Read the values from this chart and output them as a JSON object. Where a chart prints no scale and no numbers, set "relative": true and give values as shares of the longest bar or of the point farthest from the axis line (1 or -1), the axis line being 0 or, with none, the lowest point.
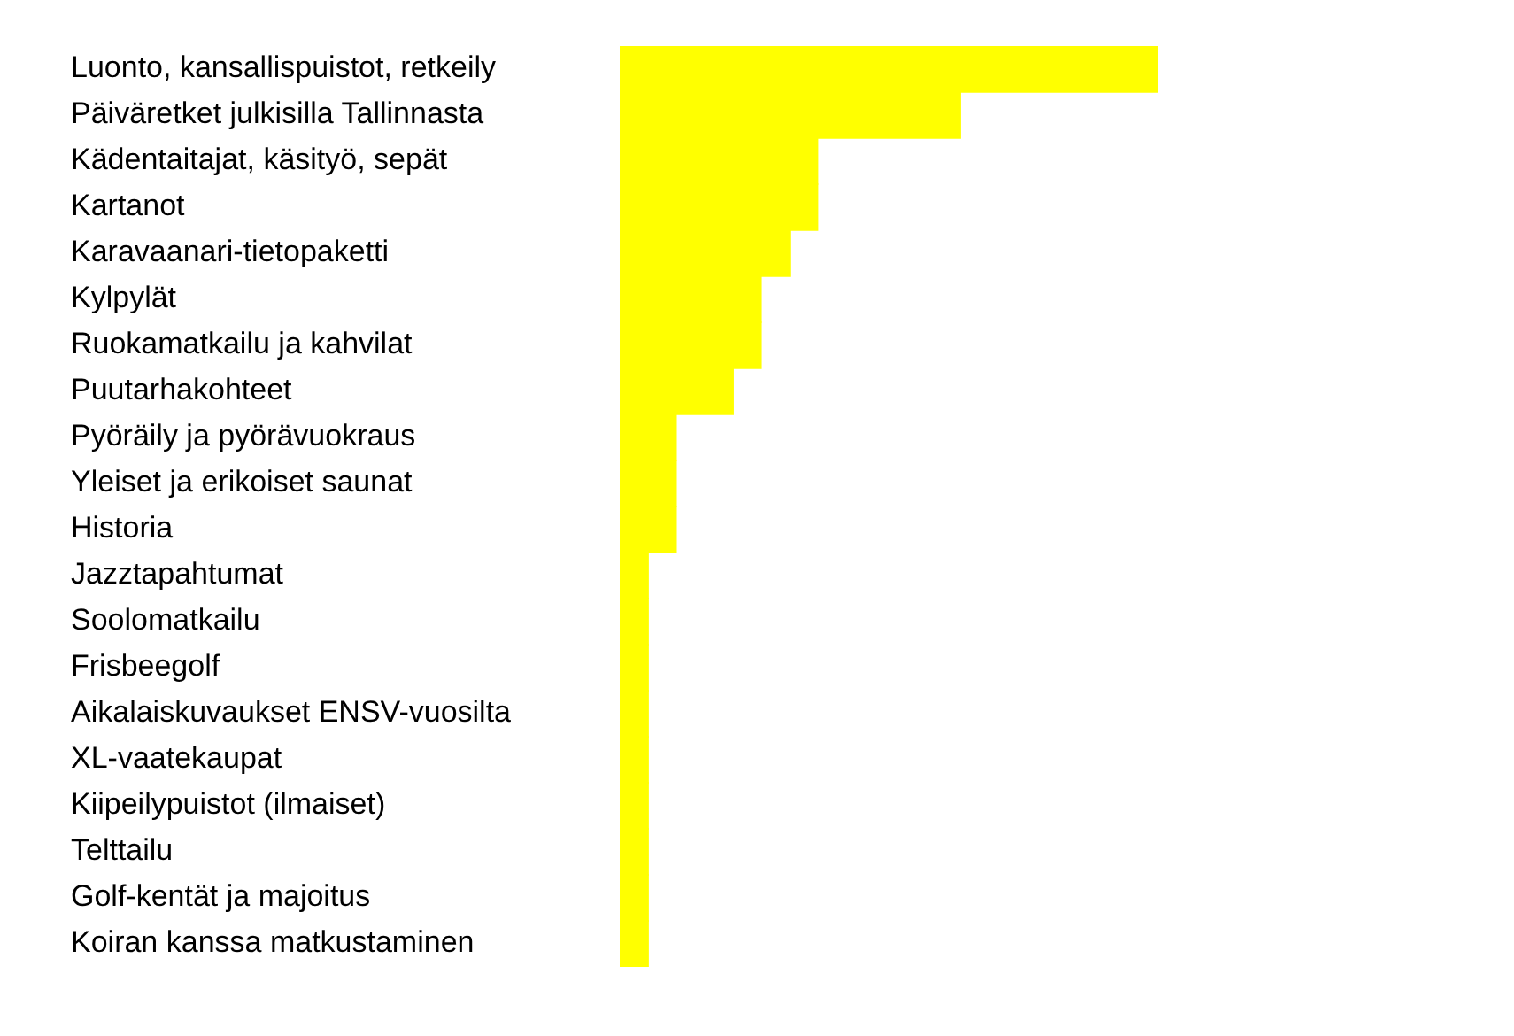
{
  "chart_data": {
    "type": "bar",
    "orientation": "horizontal",
    "relative": true,
    "color": "#ffff00",
    "categories": [
      "Luonto, kansallispuistot, retkeily",
      "Päiväretket julkisilla Tallinnasta",
      "Kädentaitajat, käsityö, sepät",
      "Kartanot",
      "Karavaanari-tietopaketti",
      "Kylpylät",
      "Ruokamatkailu ja kahvilat",
      "Puutarhakohteet",
      "Pyöräily ja pyörävuokraus",
      "Yleiset ja erikoiset saunat",
      "Historia",
      "Jazztapahtumat",
      "Soolomatkailu",
      "Frisbeegolf",
      "Aikalaiskuvaukset ENSV-vuosilta",
      "XL-vaatekaupat",
      "Kiipeilypuistot (ilmaiset)",
      "Telttailu",
      "Golf-kentät ja majoitus",
      "Koiran kanssa matkustaminen"
    ],
    "values": [
      1,
      0.632,
      0.368,
      0.368,
      0.316,
      0.263,
      0.263,
      0.211,
      0.105,
      0.105,
      0.105,
      0.053,
      0.053,
      0.053,
      0.053,
      0.053,
      0.053,
      0.053,
      0.053,
      0.053
    ]
  }
}
